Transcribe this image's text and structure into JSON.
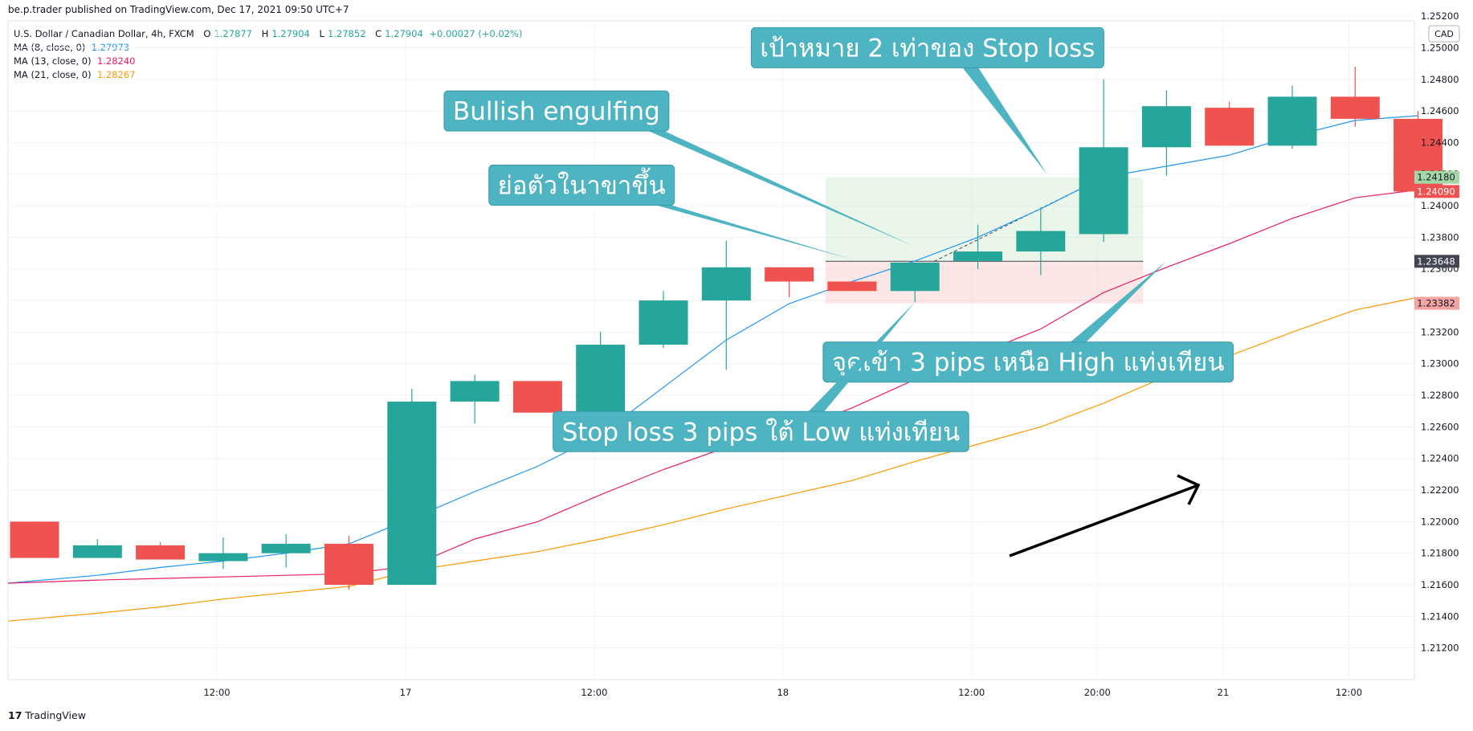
{
  "header": {
    "published": "be.p.trader published on TradingView.com, Dec 17, 2021 09:50 UTC+7"
  },
  "legend": {
    "symbol": "U.S. Dollar / Canadian Dollar, 4h, FXCM",
    "ohlc": {
      "o_label": "O",
      "o": "1.27877",
      "h_label": "H",
      "h": "1.27904",
      "l_label": "L",
      "l": "1.27852",
      "c_label": "C",
      "c": "1.27904",
      "change": "+0.00027 (+0.02%)"
    },
    "ma": [
      {
        "label": "MA (8, close, 0)",
        "value": "1.27973",
        "color": "#2196f3"
      },
      {
        "label": "MA (13, close, 0)",
        "value": "1.28240",
        "color": "#e91e63"
      },
      {
        "label": "MA (21, close, 0)",
        "value": "1.28267",
        "color": "#ff9800"
      }
    ]
  },
  "footer": {
    "brand": "TradingView",
    "logo": "tv-logo-icon"
  },
  "colors": {
    "up": "#26a69a",
    "down": "#ef5350",
    "annotation": "#4fb4c1",
    "grid": "#f0f3fa"
  },
  "chart_data": {
    "type": "candlestick",
    "currency": "CAD",
    "ylim": [
      1.21,
      1.2517
    ],
    "y_ticks": [
      "1.21200",
      "1.21400",
      "1.21600",
      "1.21800",
      "1.22000",
      "1.22200",
      "1.22400",
      "1.22600",
      "1.22800",
      "1.23000",
      "1.23200",
      "1.23400",
      "1.23600",
      "1.23800",
      "1.24000",
      "1.24200",
      "1.24400",
      "1.24600",
      "1.24800",
      "1.25000",
      "1.25200"
    ],
    "x_ticks": [
      {
        "bar": 2.9,
        "label": "12:00"
      },
      {
        "bar": 5.9,
        "label": "17"
      },
      {
        "bar": 8.9,
        "label": "12:00"
      },
      {
        "bar": 11.9,
        "label": "18"
      },
      {
        "bar": 14.9,
        "label": "12:00"
      },
      {
        "bar": 16.9,
        "label": "20:00"
      },
      {
        "bar": 18.9,
        "label": "21"
      },
      {
        "bar": 20.9,
        "label": "12:00"
      }
    ],
    "candles": [
      {
        "o": 1.22,
        "h": 1.22,
        "l": 1.2177,
        "c": 1.2177
      },
      {
        "o": 1.2177,
        "h": 1.2189,
        "l": 1.2177,
        "c": 1.2185
      },
      {
        "o": 1.2185,
        "h": 1.2187,
        "l": 1.2176,
        "c": 1.2176
      },
      {
        "o": 1.2175,
        "h": 1.219,
        "l": 1.217,
        "c": 1.218
      },
      {
        "o": 1.218,
        "h": 1.2192,
        "l": 1.2171,
        "c": 1.2186
      },
      {
        "o": 1.2186,
        "h": 1.2191,
        "l": 1.2157,
        "c": 1.216
      },
      {
        "o": 1.216,
        "h": 1.2284,
        "l": 1.216,
        "c": 1.2276
      },
      {
        "o": 1.2276,
        "h": 1.2293,
        "l": 1.2262,
        "c": 1.2289
      },
      {
        "o": 1.2289,
        "h": 1.2289,
        "l": 1.2269,
        "c": 1.2269
      },
      {
        "o": 1.2269,
        "h": 1.232,
        "l": 1.2264,
        "c": 1.2312
      },
      {
        "o": 1.2312,
        "h": 1.2346,
        "l": 1.231,
        "c": 1.234
      },
      {
        "o": 1.234,
        "h": 1.2378,
        "l": 1.2296,
        "c": 1.2361
      },
      {
        "o": 1.2361,
        "h": 1.2361,
        "l": 1.2342,
        "c": 1.2352
      },
      {
        "o": 1.2352,
        "h": 1.2352,
        "l": 1.2346,
        "c": 1.2346
      },
      {
        "o": 1.2346,
        "h": 1.2364,
        "l": 1.2339,
        "c": 1.2364
      },
      {
        "o": 1.2365,
        "h": 1.2388,
        "l": 1.236,
        "c": 1.2371
      },
      {
        "o": 1.2371,
        "h": 1.2399,
        "l": 1.2356,
        "c": 1.2384
      },
      {
        "o": 1.2382,
        "h": 1.248,
        "l": 1.2377,
        "c": 1.2437
      },
      {
        "o": 1.2437,
        "h": 1.2473,
        "l": 1.2419,
        "c": 1.2463
      },
      {
        "o": 1.2462,
        "h": 1.2466,
        "l": 1.2438,
        "c": 1.2438
      },
      {
        "o": 1.2438,
        "h": 1.2476,
        "l": 1.2436,
        "c": 1.2469
      },
      {
        "o": 1.2469,
        "h": 1.2488,
        "l": 1.245,
        "c": 1.2455
      },
      {
        "o": 1.2455,
        "h": 1.246,
        "l": 1.2405,
        "c": 1.2409
      }
    ],
    "series": [
      {
        "name": "MA (8, close, 0)",
        "color": "#2196f3",
        "values": [
          1.2161,
          1.2166,
          1.2171,
          1.2175,
          1.218,
          1.2186,
          1.2202,
          1.2219,
          1.2235,
          1.2255,
          1.2285,
          1.2315,
          1.2338,
          1.2352,
          1.2365,
          1.238,
          1.2398,
          1.2418,
          1.2425,
          1.2432,
          1.2444,
          1.2454,
          1.2457
        ]
      },
      {
        "name": "MA (13, close, 0)",
        "color": "#e91e63",
        "values": [
          1.2161,
          1.2163,
          1.2164,
          1.2165,
          1.2166,
          1.2167,
          1.2172,
          1.2189,
          1.22,
          1.2217,
          1.2233,
          1.2247,
          1.2257,
          1.2272,
          1.229,
          1.2306,
          1.2322,
          1.2345,
          1.2361,
          1.2376,
          1.2392,
          1.2405,
          1.241
        ]
      },
      {
        "name": "MA (21, close, 0)",
        "color": "#ff9800",
        "values": [
          1.2137,
          1.2142,
          1.2146,
          1.2151,
          1.2155,
          1.2159,
          1.2169,
          1.2175,
          1.2181,
          1.2189,
          1.2198,
          1.2208,
          1.2217,
          1.2226,
          1.2238,
          1.2249,
          1.226,
          1.2275,
          1.2292,
          1.2305,
          1.232,
          1.2334,
          1.2342
        ]
      }
    ],
    "price_labels": [
      {
        "value": 1.2418,
        "label": "1.24180",
        "color": "#a5d6a7",
        "text_color": "#131722"
      },
      {
        "value": 1.2409,
        "label": "1.24090",
        "color": "#ef5350",
        "text_color": "#ffffff"
      },
      {
        "value": 1.23648,
        "label": "1.23648",
        "color": "#434651",
        "text_color": "#ffffff"
      },
      {
        "value": 1.23382,
        "label": "1.23382",
        "color": "#f5a3a3",
        "text_color": "#131722"
      }
    ],
    "position": {
      "entry": 1.23648,
      "stop": 1.23382,
      "target": 1.2418,
      "from_bar": 13,
      "to_bar": 18
    },
    "annotations": [
      {
        "text": "เป้าหมาย 2 เท่าของ Stop loss",
        "label_bar": 14.2,
        "label_price": 1.25,
        "tip_bar": 16.1,
        "tip_price": 1.242
      },
      {
        "text": "Bullish engulfing",
        "label_bar": 8.3,
        "label_price": 1.246,
        "tip_bar": 14.0,
        "tip_price": 1.2374
      },
      {
        "text": "ย่อตัวในาขาขึ้น",
        "label_bar": 8.7,
        "label_price": 1.2413,
        "tip_bar": 13.0,
        "tip_price": 1.2366
      },
      {
        "text": "จุดเข้า 3 pips เหนือ High แท่งเทียน",
        "label_bar": 15.8,
        "label_price": 1.2301,
        "tip_bar": 18.0,
        "tip_price": 1.2365
      },
      {
        "text": "Stop loss 3 pips ใต้ Low แท่งเทียน",
        "label_bar": 11.55,
        "label_price": 1.2257,
        "tip_bar": 14.0,
        "tip_price": 1.2339
      }
    ]
  }
}
